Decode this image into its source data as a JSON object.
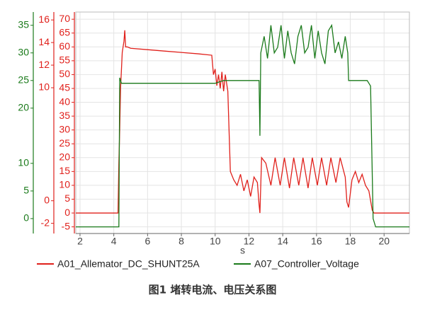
{
  "chart_data": {
    "type": "line",
    "x_label": "s",
    "caption": "图1  堵转电流、电压关系图",
    "xlim": [
      1.75,
      21.5
    ],
    "xticks": [
      2,
      4,
      6,
      8,
      10,
      12,
      14,
      16,
      18,
      20
    ],
    "ylim": [
      -2.7,
      37.4
    ],
    "yticks": [
      0,
      5,
      10,
      20,
      25,
      30,
      35
    ],
    "y2lim": [
      -2.9,
      16.7
    ],
    "y2ticks": [
      -2,
      0,
      10,
      12,
      14,
      16
    ],
    "y3lim": [
      -7.4,
      72.6
    ],
    "y3ticks": [
      -5,
      0,
      5,
      10,
      15,
      20,
      25,
      30,
      35,
      40,
      45,
      50,
      55,
      60,
      65,
      70
    ],
    "grid": true,
    "series": [
      {
        "name": "A01_Allemator_DC_SHUNT25A",
        "color": "#e0201b",
        "axis": "y3",
        "x": [
          1.75,
          4.25,
          4.3,
          4.35,
          4.4,
          4.5,
          4.6,
          4.65,
          4.7,
          4.8,
          5,
          6,
          7,
          8,
          9,
          9.8,
          9.9,
          10,
          10.1,
          10.2,
          10.3,
          10.4,
          10.5,
          10.6,
          10.75,
          10.9,
          11.1,
          11.3,
          11.5,
          11.7,
          11.9,
          12.1,
          12.3,
          12.5,
          12.6,
          12.65,
          12.75,
          13.0,
          13.3,
          13.55,
          13.85,
          14.1,
          14.4,
          14.65,
          14.95,
          15.2,
          15.5,
          15.75,
          16.05,
          16.3,
          16.6,
          16.85,
          17.15,
          17.4,
          17.7,
          17.8,
          17.9,
          18.1,
          18.3,
          18.5,
          18.7,
          18.9,
          19.1,
          19.3,
          19.4,
          21.5
        ],
        "values": [
          0,
          0,
          18,
          30,
          45,
          58,
          62,
          66,
          60,
          60,
          59.5,
          59,
          58.5,
          58,
          57.5,
          57,
          50,
          52,
          46,
          50,
          45,
          51,
          44,
          50,
          44,
          15,
          12,
          10,
          14,
          8,
          12,
          6,
          13,
          11,
          3,
          0,
          20,
          18,
          10,
          20,
          10,
          20,
          9,
          20,
          10,
          20,
          9,
          20,
          10,
          20,
          10,
          20,
          11,
          20,
          13,
          4,
          2,
          12,
          15,
          11,
          14,
          10,
          8,
          1,
          0,
          0
        ]
      },
      {
        "name": "A07_Controller_Voltage",
        "color": "#1a7a1a",
        "axis": "y",
        "x": [
          1.75,
          4.3,
          4.35,
          4.45,
          5,
          7,
          9,
          10,
          10.5,
          11,
          12,
          12.6,
          12.65,
          12.7,
          12.9,
          13.1,
          13.3,
          13.5,
          13.7,
          13.9,
          14.1,
          14.3,
          14.5,
          14.7,
          14.9,
          15.1,
          15.3,
          15.5,
          15.7,
          15.9,
          16.1,
          16.3,
          16.5,
          16.7,
          16.9,
          17.1,
          17.3,
          17.5,
          17.7,
          17.85,
          17.9,
          18.2,
          19,
          19.2,
          19.35,
          19.5,
          21.5
        ],
        "values": [
          -1.5,
          -1.5,
          25.5,
          24.5,
          24.5,
          24.5,
          24.5,
          24.5,
          25,
          25,
          25,
          25,
          15,
          30,
          33,
          29,
          35,
          30,
          31,
          35,
          29,
          34,
          30,
          28,
          33,
          35,
          30,
          31,
          35,
          29,
          34,
          30,
          28,
          34,
          35,
          30,
          32,
          29,
          33,
          30,
          25,
          25,
          25,
          24,
          0,
          -1.5,
          -1.5
        ]
      }
    ]
  }
}
